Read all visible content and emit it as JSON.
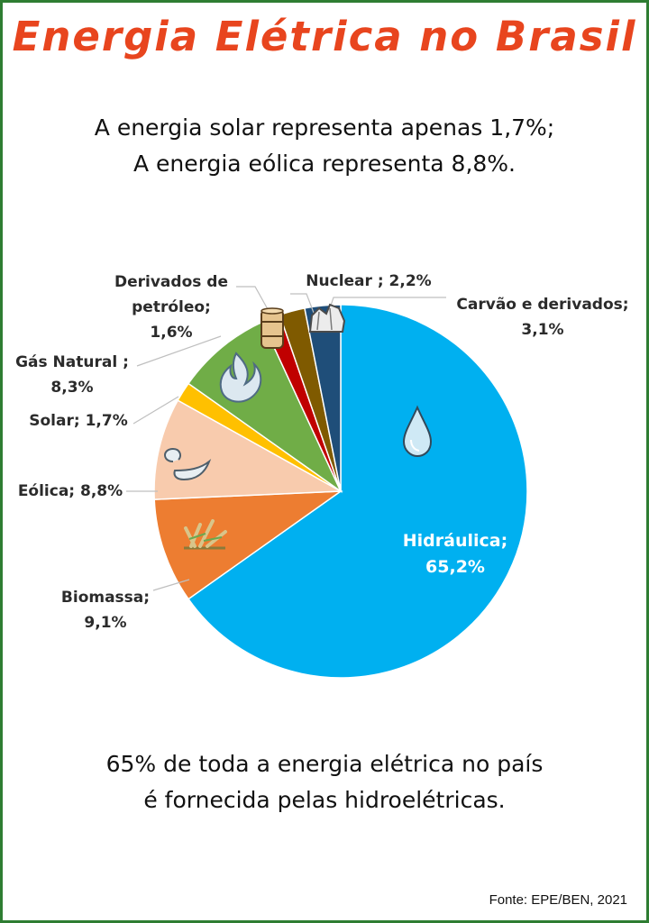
{
  "title": "Energia Elétrica no Brasil",
  "subtitle_lines": [
    "A energia solar representa apenas 1,7%;",
    "A energia eólica representa 8,8%."
  ],
  "footer_lines": [
    "65% de toda a energia elétrica no país",
    "é fornecida pelas hidroelétricas."
  ],
  "source": "Fonte: EPE/BEN, 2021",
  "colors": {
    "title": "#e8451e",
    "border": "#2e7d32"
  },
  "chart_data": {
    "type": "pie",
    "title": "",
    "slices": [
      {
        "name": "Hidráulica",
        "value": 65.2,
        "label_lines": [
          "Hidráulica;",
          "65,2%"
        ],
        "color": "#00b0f0",
        "icon": "water-drop-icon"
      },
      {
        "name": "Biomassa",
        "value": 9.1,
        "label_lines": [
          "Biomassa;",
          "9,1%"
        ],
        "color": "#ed7d31",
        "icon": "sugarcane-icon"
      },
      {
        "name": "Eólica",
        "value": 8.8,
        "label_lines": [
          "Eólica; 8,8%"
        ],
        "color": "#f8cbad",
        "icon": "wind-icon"
      },
      {
        "name": "Solar",
        "value": 1.7,
        "label_lines": [
          "Solar; 1,7%"
        ],
        "color": "#ffc000",
        "icon": ""
      },
      {
        "name": "Gás Natural",
        "value": 8.3,
        "label_lines": [
          "Gás Natural ;",
          "8,3%"
        ],
        "color": "#70ad47",
        "icon": "gas-flame-icon"
      },
      {
        "name": "Derivados de petróleo",
        "value": 1.6,
        "label_lines": [
          "Derivados de",
          "petróleo;",
          "1,6%"
        ],
        "color": "#c00000",
        "icon": "oil-barrel-icon"
      },
      {
        "name": "Nuclear",
        "value": 2.2,
        "label_lines": [
          "Nuclear ; 2,2%"
        ],
        "color": "#7f5a00",
        "icon": ""
      },
      {
        "name": "Carvão e derivados",
        "value": 3.1,
        "label_lines": [
          "Carvão e derivados;",
          "3,1%"
        ],
        "color": "#1f4e79",
        "icon": "coal-icon"
      }
    ]
  }
}
